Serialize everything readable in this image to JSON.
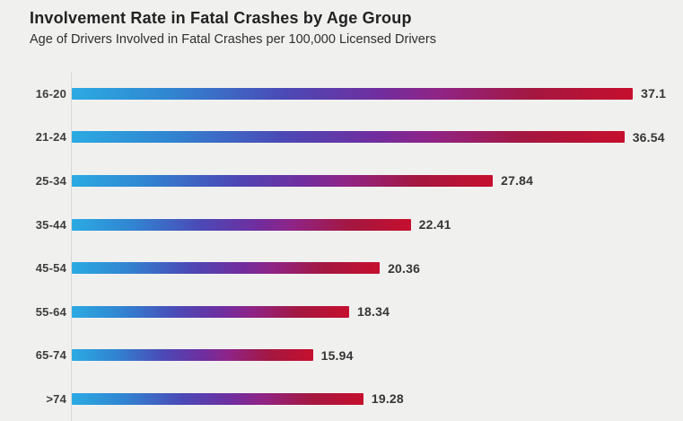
{
  "page": {
    "background": "#f0f0ef"
  },
  "header": {
    "title": "Involvement Rate in Fatal Crashes by Age Group",
    "subtitle": "Age of Drivers Involved in Fatal Crashes per 100,000 Licensed Drivers",
    "title_color": "#222222",
    "subtitle_color": "#2e2e2e"
  },
  "chart_data": {
    "type": "bar",
    "orientation": "horizontal",
    "title": "Involvement Rate in Fatal Crashes by Age Group",
    "subtitle": "Age of Drivers Involved in Fatal Crashes per 100,000 Licensed Drivers",
    "categories": [
      "16-20",
      "21-24",
      "25-34",
      "35-44",
      "45-54",
      "55-64",
      "65-74",
      ">74"
    ],
    "values": [
      37.1,
      36.54,
      27.84,
      22.41,
      20.36,
      18.34,
      15.94,
      19.28
    ],
    "xlim": [
      0,
      40.4
    ],
    "grid": false,
    "legend": false,
    "value_labels_shown": true,
    "bar_gradient_colors": [
      "#2BAAE2",
      "#3184D1",
      "#4B49B6",
      "#712D9E",
      "#8F2487",
      "#A41740",
      "#C60F2E"
    ],
    "tick_label_color": "#3d3d3d",
    "value_label_color": "#363636",
    "axis_line_color": "#d8d8d6"
  }
}
